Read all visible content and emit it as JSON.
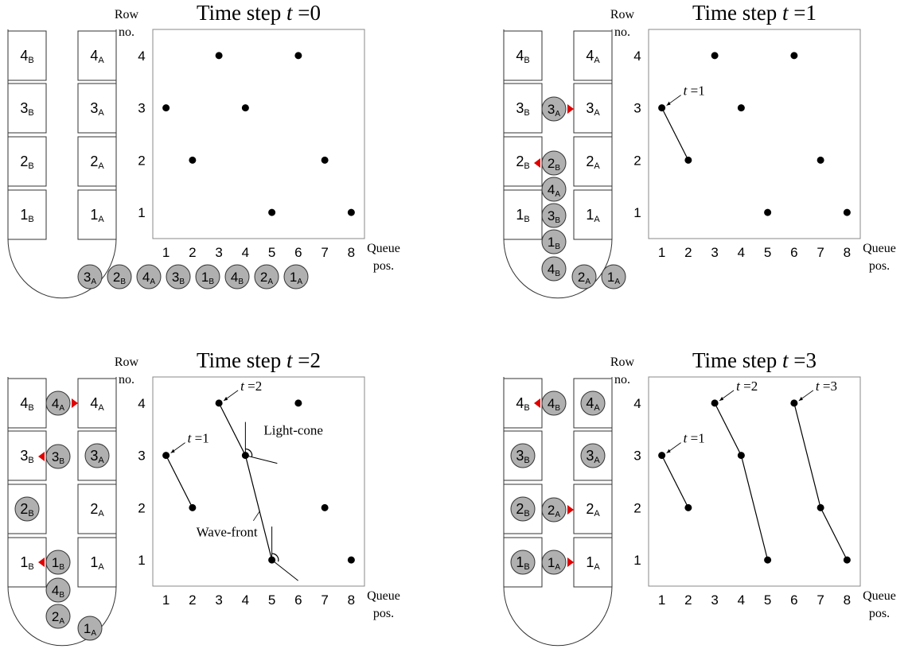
{
  "figure": {
    "panels": [
      {
        "title": "Time step t =0",
        "seats": {
          "B": [
            "1B",
            "2B",
            "3B",
            "4B"
          ],
          "A": [
            "1A",
            "2A",
            "3A",
            "4A"
          ]
        },
        "passengers_in_aisle": [],
        "passengers_in_queue": [
          "3A",
          "2B",
          "4A",
          "3B",
          "1B",
          "4B",
          "2A",
          "1A"
        ],
        "seated_passengers": [],
        "arrows": []
      },
      {
        "title": "Time step t =1",
        "seats": {
          "B": [
            "1B",
            "2B",
            "3B",
            "4B"
          ],
          "A": [
            "1A",
            "2A",
            "3A",
            "4A"
          ]
        },
        "passengers_in_aisle": [
          "4B",
          "1B",
          "3B",
          "4A",
          "2B",
          "3A"
        ],
        "passengers_in_queue": [
          "2A",
          "1A"
        ],
        "seated_passengers": [],
        "arrows": [
          {
            "at": "3A",
            "dir": "right"
          },
          {
            "at": "2B",
            "dir": "left"
          }
        ]
      },
      {
        "title": "Time step t =2",
        "seats": {
          "B": [
            "1B",
            "2B",
            "3B",
            "4B"
          ],
          "A": [
            "1A",
            "2A",
            "3A",
            "4A"
          ]
        },
        "passengers_in_aisle": [
          "2A",
          "4B",
          "1B",
          "3B",
          "4A"
        ],
        "passengers_in_queue": [
          "1A"
        ],
        "seated_passengers": [
          "2B",
          "3A"
        ],
        "arrows": [
          {
            "at": "4A",
            "dir": "right"
          },
          {
            "at": "3B",
            "dir": "left"
          },
          {
            "at": "1B",
            "dir": "left"
          }
        ]
      },
      {
        "title": "Time step t =3",
        "seats": {
          "B": [
            "1B",
            "2B",
            "3B",
            "4B"
          ],
          "A": [
            "1A",
            "2A",
            "3A",
            "4A"
          ]
        },
        "passengers_in_aisle": [
          "1A",
          "2A",
          "4B"
        ],
        "passengers_in_queue": [],
        "seated_passengers": [
          "1B",
          "2B",
          "3B",
          "3A",
          "4A"
        ],
        "arrows": [
          {
            "at": "4B",
            "dir": "left"
          },
          {
            "at": "2A",
            "dir": "right"
          },
          {
            "at": "1A",
            "dir": "right"
          }
        ]
      }
    ],
    "annotations": {
      "light_cone": "Light-cone",
      "wave_front": "Wave-front",
      "t1": "t =1",
      "t2": "t =2",
      "t3": "t =3"
    }
  },
  "chart_data": [
    {
      "type": "scatter",
      "title": "Time step t =0",
      "xlabel": "Queue pos.",
      "ylabel": "Row no.",
      "x": [
        1,
        2,
        3,
        4,
        5,
        6,
        7,
        8
      ],
      "y": [
        3,
        2,
        4,
        3,
        1,
        4,
        2,
        1
      ],
      "xlim": [
        0.5,
        8.5
      ],
      "ylim": [
        0.5,
        4.5
      ],
      "xticks": [
        1,
        2,
        3,
        4,
        5,
        6,
        7,
        8
      ],
      "yticks": [
        1,
        2,
        3,
        4
      ],
      "lines": []
    },
    {
      "type": "scatter",
      "title": "Time step t =1",
      "xlabel": "Queue pos.",
      "ylabel": "Row no.",
      "x": [
        1,
        2,
        3,
        4,
        5,
        6,
        7,
        8
      ],
      "y": [
        3,
        2,
        4,
        3,
        1,
        4,
        2,
        1
      ],
      "xlim": [
        0.5,
        8.5
      ],
      "ylim": [
        0.5,
        4.5
      ],
      "xticks": [
        1,
        2,
        3,
        4,
        5,
        6,
        7,
        8
      ],
      "yticks": [
        1,
        2,
        3,
        4
      ],
      "lines": [
        [
          [
            1,
            3
          ],
          [
            2,
            2
          ]
        ]
      ],
      "labels": [
        {
          "text": "t =1",
          "at": [
            1,
            3
          ]
        }
      ]
    },
    {
      "type": "scatter",
      "title": "Time step t =2",
      "xlabel": "Queue pos.",
      "ylabel": "Row no.",
      "x": [
        1,
        2,
        3,
        4,
        5,
        6,
        7,
        8
      ],
      "y": [
        3,
        2,
        4,
        3,
        1,
        4,
        2,
        1
      ],
      "xlim": [
        0.5,
        8.5
      ],
      "ylim": [
        0.5,
        4.5
      ],
      "xticks": [
        1,
        2,
        3,
        4,
        5,
        6,
        7,
        8
      ],
      "yticks": [
        1,
        2,
        3,
        4
      ],
      "lines": [
        [
          [
            1,
            3
          ],
          [
            2,
            2
          ]
        ],
        [
          [
            3,
            4
          ],
          [
            4,
            3
          ],
          [
            5,
            1
          ]
        ]
      ],
      "labels": [
        {
          "text": "t =1",
          "at": [
            1,
            3
          ]
        },
        {
          "text": "t =2",
          "at": [
            3,
            4
          ]
        },
        {
          "text": "Light-cone",
          "at": [
            4,
            3
          ]
        },
        {
          "text": "Wave-front",
          "at": [
            4.5,
            2
          ]
        }
      ]
    },
    {
      "type": "scatter",
      "title": "Time step t =3",
      "xlabel": "Queue pos.",
      "ylabel": "Row no.",
      "x": [
        1,
        2,
        3,
        4,
        5,
        6,
        7,
        8
      ],
      "y": [
        3,
        2,
        4,
        3,
        1,
        4,
        2,
        1
      ],
      "xlim": [
        0.5,
        8.5
      ],
      "ylim": [
        0.5,
        4.5
      ],
      "xticks": [
        1,
        2,
        3,
        4,
        5,
        6,
        7,
        8
      ],
      "yticks": [
        1,
        2,
        3,
        4
      ],
      "lines": [
        [
          [
            1,
            3
          ],
          [
            2,
            2
          ]
        ],
        [
          [
            3,
            4
          ],
          [
            4,
            3
          ],
          [
            5,
            1
          ]
        ],
        [
          [
            6,
            4
          ],
          [
            7,
            2
          ],
          [
            8,
            1
          ]
        ]
      ],
      "labels": [
        {
          "text": "t =1",
          "at": [
            1,
            3
          ]
        },
        {
          "text": "t =2",
          "at": [
            3,
            4
          ]
        },
        {
          "text": "t =3",
          "at": [
            6,
            4
          ]
        }
      ]
    }
  ]
}
